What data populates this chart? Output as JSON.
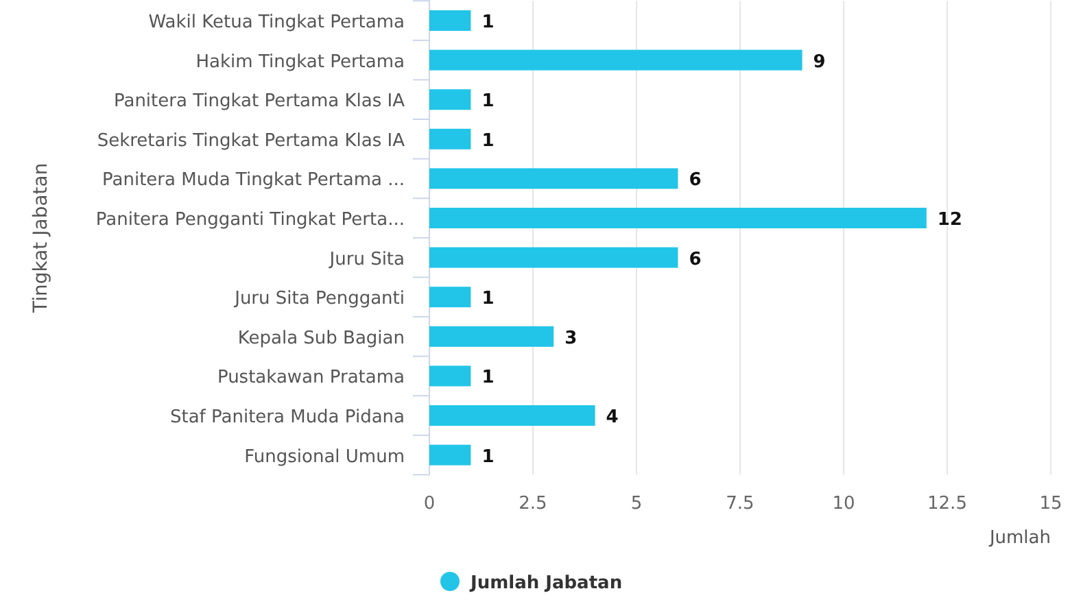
{
  "chart_data": {
    "type": "bar",
    "orientation": "horizontal",
    "xlabel": "Jumlah",
    "ylabel": "Tingkat Jabatan",
    "categories": [
      "Wakil Ketua Tingkat Pertama",
      "Hakim Tingkat Pertama",
      "Panitera Tingkat Pertama Klas IA",
      "Sekretaris Tingkat Pertama Klas IA",
      "Panitera Muda Tingkat Pertama ...",
      "Panitera Pengganti Tingkat Perta...",
      "Juru Sita",
      "Juru Sita Pengganti",
      "Kepala Sub Bagian",
      "Pustakawan Pratama",
      "Staf Panitera Muda Pidana",
      "Fungsional Umum"
    ],
    "series": [
      {
        "name": "Jumlah Jabatan",
        "color": "#22c5e8",
        "values": [
          1,
          9,
          1,
          1,
          6,
          12,
          6,
          1,
          3,
          1,
          4,
          1
        ]
      }
    ],
    "xlim": [
      0,
      15
    ],
    "xticks": [
      0,
      2.5,
      5,
      7.5,
      10,
      12.5,
      15
    ],
    "grid": "x",
    "data_labels": true,
    "legend": "bottom"
  }
}
